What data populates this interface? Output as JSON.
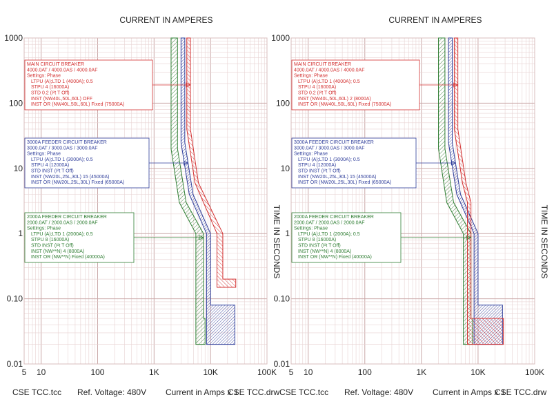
{
  "chart_data": [
    {
      "type": "line",
      "title": "CURRENT IN AMPERES",
      "xlabel": "Current in Amps x 1",
      "ylabel": "TIME IN SECONDS",
      "xscale": "log",
      "yscale": "log",
      "xlim": [
        5,
        100000
      ],
      "ylim": [
        0.01,
        1000
      ],
      "x_tick_labels": [
        "5",
        "10",
        "100",
        "1K",
        "10K",
        "100K"
      ],
      "y_tick_labels": [
        "0.01",
        "0.10",
        "1",
        "10",
        "100",
        "1000"
      ],
      "footer": [
        "CSE TCC.tcc",
        "Ref. Voltage: 480V",
        "Current in Amps x 1",
        "CSE TCC.drw"
      ],
      "annotations": [
        {
          "color": "#d32f2f",
          "lines": [
            "MAIN CIRCUIT BREAKER",
            "4000.0AT / 4000.0AS / 4000.0AF",
            "Settings: Phase",
            "   LTPU (A);LTD 1 (4000A); 0.5",
            "   STPU 4 (16000A)",
            "   STD 0.2 (I²t T Off)",
            "   INST (NW40L,50L,60L) OFF",
            "   INST OR (NW40L,50L,60L) Fixed (75000A)"
          ]
        },
        {
          "color": "#2e3d9a",
          "lines": [
            "3000A FEEDER CIRCUIT BREAKER",
            "3000.0AT / 3000.0AS / 3000.0AF",
            "Settings: Phase",
            "   LTPU (A);LTD 1 (3000A); 0.5",
            "   STPU 4 (12000A)",
            "   STD INST (I²t T Off)",
            "   INST (NW20L,25L,30L) 15 (45000A)",
            "   INST OR (NW20L,25L,30L) Fixed (65000A)"
          ]
        },
        {
          "color": "#2e7d32",
          "lines": [
            "2000A FEEDER CIRCUIT BREAKER",
            "2000.0AT / 2000.0AS / 2000.0AF",
            "Settings: Phase",
            "   LTPU (A);LTD 1 (2000A); 0.5",
            "   STPU 8 (16000A)",
            "   STD INST (I²t T Off)",
            "   INST (NW**N) 4 (8000A)",
            "   INST OR (NW**N) Fixed (40000A)"
          ]
        }
      ]
    },
    {
      "type": "line",
      "title": "CURRENT IN AMPERES",
      "xlabel": "Current in Amps x 1",
      "ylabel": "TIME IN SECONDS",
      "xscale": "log",
      "yscale": "log",
      "xlim": [
        5,
        100000
      ],
      "ylim": [
        0.01,
        1000
      ],
      "x_tick_labels": [
        "5",
        "10",
        "100",
        "1K",
        "10K",
        "100K"
      ],
      "y_tick_labels": [
        "0.01",
        "0.10",
        "1",
        "10",
        "100",
        "1000"
      ],
      "footer": [
        "CSE TCC.tcc",
        "Ref. Voltage: 480V",
        "Current in Amps x 1",
        "CSE TCC.drw"
      ],
      "annotations": [
        {
          "color": "#d32f2f",
          "lines": [
            "MAIN CIRCUIT BREAKER",
            "4000.0AT / 4000.0AS / 4000.0AF",
            "Settings: Phase",
            "   LTPU (A);LTD 1 (4000A); 0.5",
            "   STPU 4 (16000A)",
            "   STD 0.2 (I²t T Off)",
            "   INST (NW40L,50L,60L) 2 (8000A)",
            "   INST OR (NW40L,50L,60L) Fixed (75000A)"
          ]
        },
        {
          "color": "#2e3d9a",
          "lines": [
            "3000A FEEDER CIRCUIT BREAKER",
            "3000.0AT / 3000.0AS / 3000.0AF",
            "Settings: Phase",
            "   LTPU (A);LTD 1 (3000A); 0.5",
            "   STPU 4 (12000A)",
            "   STD INST (I²t T Off)",
            "   INST (NW20L,25L,30L) 15 (45000A)",
            "   INST OR (NW20L,25L,30L) Fixed (65000A)"
          ]
        },
        {
          "color": "#2e7d32",
          "lines": [
            "2000A FEEDER CIRCUIT BREAKER",
            "2000.0AT / 2000.0AS / 2000.0AF",
            "Settings: Phase",
            "   LTPU (A);LTD 1 (2000A); 0.5",
            "   STPU 8 (16000A)",
            "   STD INST (I²t T Off)",
            "   INST (NW**N) 4 (8000A)",
            "   INST OR (NW**N) Fixed (40000A)"
          ]
        }
      ]
    }
  ],
  "curve_bands": [
    [
      {
        "name": "2000A Feeder",
        "color": "#2e7d32",
        "inst_kA": 8,
        "min": [
          [
            2000,
            1000
          ],
          [
            2000,
            20
          ],
          [
            2800,
            3
          ],
          [
            5500,
            1
          ],
          [
            5500,
            0.02
          ],
          [
            8000,
            0.02
          ]
        ],
        "max": [
          [
            2600,
            1000
          ],
          [
            2600,
            20
          ],
          [
            3700,
            3
          ],
          [
            7500,
            1
          ],
          [
            7500,
            0.05
          ],
          [
            8000,
            0.05
          ]
        ]
      },
      {
        "name": "3000A Feeder",
        "color": "#2e3d9a",
        "inst_kA": 45,
        "min": [
          [
            3000,
            1000
          ],
          [
            3000,
            25
          ],
          [
            4200,
            4
          ],
          [
            8500,
            1
          ],
          [
            8500,
            0.02
          ],
          [
            27000,
            0.02
          ]
        ],
        "max": [
          [
            3500,
            1000
          ],
          [
            3500,
            25
          ],
          [
            4900,
            4
          ],
          [
            10000,
            1
          ],
          [
            10000,
            0.08
          ],
          [
            27000,
            0.08
          ]
        ]
      },
      {
        "name": "Main",
        "color": "#d32f2f",
        "inst_kA": 75,
        "min": [
          [
            3800,
            1000
          ],
          [
            3800,
            40
          ],
          [
            5300,
            6
          ],
          [
            13000,
            1
          ],
          [
            13000,
            0.15
          ],
          [
            28000,
            0.15
          ]
        ],
        "max": [
          [
            4400,
            1000
          ],
          [
            4400,
            40
          ],
          [
            6100,
            6
          ],
          [
            16500,
            1
          ],
          [
            16500,
            0.2
          ],
          [
            28000,
            0.2
          ]
        ]
      }
    ],
    [
      {
        "name": "2000A Feeder",
        "color": "#2e7d32",
        "inst_kA": 8,
        "min": [
          [
            2000,
            1000
          ],
          [
            2000,
            20
          ],
          [
            2800,
            3
          ],
          [
            5500,
            1
          ],
          [
            5500,
            0.02
          ],
          [
            8000,
            0.02
          ]
        ],
        "max": [
          [
            2600,
            1000
          ],
          [
            2600,
            20
          ],
          [
            3700,
            3
          ],
          [
            7500,
            1
          ],
          [
            7500,
            0.05
          ],
          [
            8000,
            0.05
          ]
        ]
      },
      {
        "name": "3000A Feeder",
        "color": "#2e3d9a",
        "inst_kA": 45,
        "min": [
          [
            3000,
            1000
          ],
          [
            3000,
            25
          ],
          [
            4200,
            4
          ],
          [
            8500,
            1
          ],
          [
            8500,
            0.02
          ],
          [
            27000,
            0.02
          ]
        ],
        "max": [
          [
            3500,
            1000
          ],
          [
            3500,
            25
          ],
          [
            4900,
            4
          ],
          [
            10000,
            1
          ],
          [
            10000,
            0.08
          ],
          [
            27000,
            0.08
          ]
        ]
      },
      {
        "name": "Main",
        "color": "#d32f2f",
        "inst_kA": 8,
        "min": [
          [
            3800,
            1000
          ],
          [
            3800,
            40
          ],
          [
            5300,
            6
          ],
          [
            6500,
            3
          ],
          [
            6500,
            0.02
          ],
          [
            28000,
            0.02
          ]
        ],
        "max": [
          [
            4400,
            1000
          ],
          [
            4400,
            40
          ],
          [
            6100,
            6
          ],
          [
            7500,
            3
          ],
          [
            7500,
            0.05
          ],
          [
            28000,
            0.05
          ]
        ]
      }
    ]
  ]
}
